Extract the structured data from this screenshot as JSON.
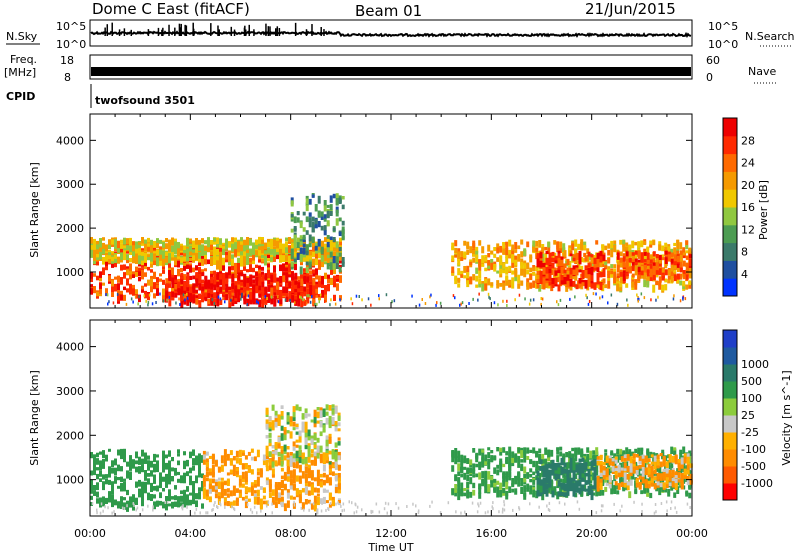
{
  "header": {
    "title": "Dome C East (fitACF)",
    "beam": "Beam 01",
    "date": "21/Jun/2015"
  },
  "strip_panels": {
    "nsky_label": "N.Sky",
    "nsearch_label": "N.Search",
    "freq_label": "Freq.",
    "freq_unit": "[MHz]",
    "nave_label": "Nave",
    "cpid_label": "CPID",
    "cpid_value": "twofsound 3501",
    "noise_ticks_left": [
      "10^5",
      "10^0"
    ],
    "noise_ticks_right": [
      "10^5",
      "10^0"
    ],
    "freq_ticks": [
      "18",
      "8"
    ],
    "nave_ticks": [
      "60",
      "0"
    ]
  },
  "colors": {
    "power_scale": [
      "#0033ff",
      "#1f4fa0",
      "#3b7a6a",
      "#4c9c52",
      "#90c840",
      "#f0c800",
      "#f59a00",
      "#ff6a00",
      "#ff2a00",
      "#ee0000"
    ],
    "velocity_scale": [
      "#ff0000",
      "#ff5a00",
      "#ff8c00",
      "#ffb000",
      "#c8c8c8",
      "#8ccc3c",
      "#2f9a4a",
      "#2a7a6a",
      "#1f5aa0",
      "#1f3fc8"
    ]
  },
  "chart_data": [
    {
      "type": "heatmap",
      "name": "Power",
      "xlabel": "Time UT",
      "ylabel": "Slant Range [km]",
      "colorbar_label": "Power [dB]",
      "colorbar_ticks": [
        "4",
        "8",
        "12",
        "16",
        "20",
        "24",
        "28"
      ],
      "x_ticks": [
        "00:00",
        "04:00",
        "08:00",
        "12:00",
        "16:00",
        "20:00",
        "00:00"
      ],
      "y_ticks": [
        "1000",
        "2000",
        "3000",
        "4000"
      ],
      "xlim_hours": [
        0,
        24
      ],
      "ylim_km": [
        180,
        4600
      ],
      "colorbar_range_db": [
        0,
        32
      ],
      "regions": [
        {
          "t0": 0.0,
          "t1": 10.0,
          "r0": 450,
          "r1": 1600,
          "value_db": 26
        },
        {
          "t0": 0.0,
          "t1": 10.0,
          "r0": 1300,
          "r1": 1800,
          "value_db": 18
        },
        {
          "t0": 3.0,
          "t1": 9.0,
          "r0": 350,
          "r1": 1000,
          "value_db": 30
        },
        {
          "t0": 8.0,
          "t1": 10.2,
          "r0": 1100,
          "r1": 2800,
          "value_db": 10
        },
        {
          "t0": 14.4,
          "t1": 24.0,
          "r0": 700,
          "r1": 1750,
          "value_db": 20
        },
        {
          "t0": 17.8,
          "t1": 20.5,
          "r0": 700,
          "r1": 1500,
          "value_db": 27
        },
        {
          "t0": 21.0,
          "t1": 24.0,
          "r0": 900,
          "r1": 1500,
          "value_db": 25
        }
      ]
    },
    {
      "type": "heatmap",
      "name": "Velocity",
      "xlabel": "Time UT",
      "ylabel": "Slant Range [km]",
      "colorbar_label": "Velocity [m s^-1]",
      "colorbar_ticks": [
        "-1000",
        "-500",
        "-100",
        "-25",
        "25",
        "100",
        "500",
        "1000"
      ],
      "x_ticks": [
        "00:00",
        "04:00",
        "08:00",
        "12:00",
        "16:00",
        "20:00",
        "00:00"
      ],
      "y_ticks": [
        "1000",
        "2000",
        "3000",
        "4000"
      ],
      "xlim_hours": [
        0,
        24
      ],
      "ylim_km": [
        180,
        4600
      ],
      "regions": [
        {
          "t0": 0.0,
          "t1": 4.5,
          "r0": 450,
          "r1": 1700,
          "value": 300
        },
        {
          "t0": 4.5,
          "t1": 10.0,
          "r0": 450,
          "r1": 1700,
          "value": -120
        },
        {
          "t0": 7.0,
          "t1": 10.0,
          "r0": 1400,
          "r1": 2700,
          "value": 0
        },
        {
          "t0": 14.4,
          "t1": 24.0,
          "r0": 700,
          "r1": 1750,
          "value": 200
        },
        {
          "t0": 17.8,
          "t1": 20.2,
          "r0": 700,
          "r1": 1500,
          "value": 600
        },
        {
          "t0": 20.2,
          "t1": 24.0,
          "r0": 900,
          "r1": 1600,
          "value": -100
        }
      ]
    }
  ]
}
